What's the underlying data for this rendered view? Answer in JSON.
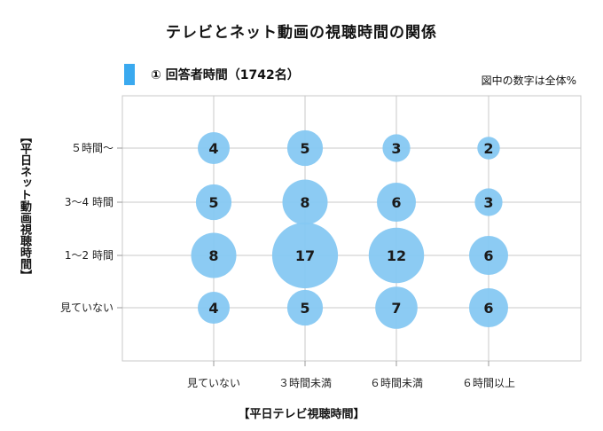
{
  "chart_data": {
    "type": "scatter",
    "title": "テレビとネット動画の視聴時間の関係",
    "legend": [
      {
        "label": "① 回答者時間（1742名）",
        "color": "#3aa9ef"
      }
    ],
    "note": "図中の数字は全体%",
    "xlabel": "【平日テレビ視聴時間】",
    "ylabel": "【平日ネット動画視聴時間】",
    "x_categories": [
      "見ていない",
      "３時間未満",
      "６時間未満",
      "６時間以上"
    ],
    "y_categories": [
      "見ていない",
      "1〜2 時間",
      "3〜4 時間",
      "５時間〜"
    ],
    "bubble_color": "#86c8f2",
    "grid": true,
    "points": [
      {
        "x": "見ていない",
        "y": "５時間〜",
        "value": 4
      },
      {
        "x": "３時間未満",
        "y": "５時間〜",
        "value": 5
      },
      {
        "x": "６時間未満",
        "y": "５時間〜",
        "value": 3
      },
      {
        "x": "６時間以上",
        "y": "５時間〜",
        "value": 2
      },
      {
        "x": "見ていない",
        "y": "3〜4 時間",
        "value": 5
      },
      {
        "x": "３時間未満",
        "y": "3〜4 時間",
        "value": 8
      },
      {
        "x": "６時間未満",
        "y": "3〜4 時間",
        "value": 6
      },
      {
        "x": "６時間以上",
        "y": "3〜4 時間",
        "value": 3
      },
      {
        "x": "見ていない",
        "y": "1〜2 時間",
        "value": 8
      },
      {
        "x": "３時間未満",
        "y": "1〜2 時間",
        "value": 17
      },
      {
        "x": "６時間未満",
        "y": "1〜2 時間",
        "value": 12
      },
      {
        "x": "６時間以上",
        "y": "1〜2 時間",
        "value": 6
      },
      {
        "x": "見ていない",
        "y": "見ていない",
        "value": 4
      },
      {
        "x": "３時間未満",
        "y": "見ていない",
        "value": 5
      },
      {
        "x": "６時間未満",
        "y": "見ていない",
        "value": 7
      },
      {
        "x": "６時間以上",
        "y": "見ていない",
        "value": 6
      }
    ]
  }
}
